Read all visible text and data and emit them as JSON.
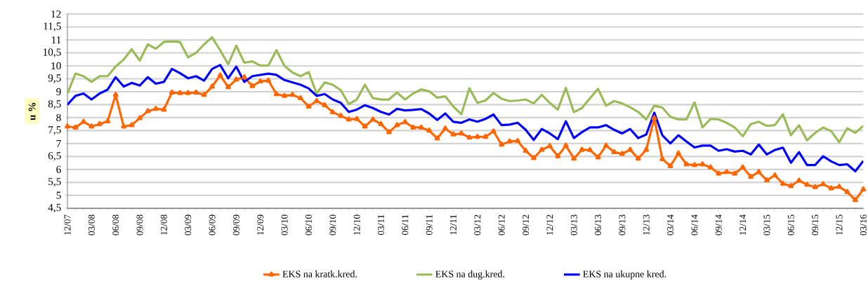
{
  "chart_data": {
    "type": "line",
    "ylabel": "u %",
    "categories": [
      "12/07",
      null,
      null,
      "03/08",
      null,
      null,
      "06/08",
      null,
      null,
      "09/08",
      null,
      null,
      "12/08",
      null,
      null,
      "03/09",
      null,
      null,
      "06/09",
      null,
      null,
      "09/09",
      null,
      null,
      "12/09",
      null,
      null,
      "03/10",
      null,
      null,
      "06/10",
      null,
      null,
      "09/10",
      null,
      null,
      "12/10",
      null,
      null,
      "03/11",
      null,
      null,
      "06/11",
      null,
      null,
      "09/11",
      null,
      null,
      "12/11",
      null,
      null,
      "03/12",
      null,
      null,
      "06/12",
      null,
      null,
      "09/12",
      null,
      null,
      "12/12",
      null,
      null,
      "03/13",
      null,
      null,
      "06/13",
      null,
      null,
      "09/13",
      null,
      null,
      "12/13",
      null,
      null,
      "03/14",
      null,
      null,
      "06/14",
      null,
      null,
      "09/14",
      null,
      null,
      "12/14",
      null,
      null,
      "03/15",
      null,
      null,
      "06/15",
      null,
      null,
      "09/15",
      null,
      null,
      "12/15",
      null,
      null,
      "03/16"
    ],
    "series": [
      {
        "name": "EKS na kratk.kred.",
        "color": "#ff6600",
        "marker": "triangle",
        "values": [
          7.66,
          7.62,
          7.84,
          7.66,
          7.75,
          7.86,
          8.88,
          7.66,
          7.71,
          7.98,
          8.25,
          8.34,
          8.31,
          8.97,
          8.95,
          8.95,
          8.97,
          8.88,
          9.2,
          9.63,
          9.18,
          9.47,
          9.56,
          9.22,
          9.4,
          9.43,
          8.91,
          8.84,
          8.88,
          8.75,
          8.43,
          8.64,
          8.48,
          8.21,
          8.07,
          7.93,
          7.95,
          7.66,
          7.93,
          7.75,
          7.44,
          7.71,
          7.83,
          7.62,
          7.62,
          7.5,
          7.2,
          7.58,
          7.35,
          7.39,
          7.23,
          7.26,
          7.26,
          7.47,
          6.96,
          7.08,
          7.1,
          6.72,
          6.44,
          6.76,
          6.9,
          6.51,
          6.92,
          6.42,
          6.76,
          6.75,
          6.47,
          6.92,
          6.67,
          6.6,
          6.76,
          6.42,
          6.76,
          7.98,
          6.4,
          6.13,
          6.62,
          6.2,
          6.17,
          6.2,
          6.08,
          5.84,
          5.9,
          5.84,
          6.08,
          5.72,
          5.9,
          5.58,
          5.77,
          5.45,
          5.36,
          5.57,
          5.41,
          5.32,
          5.43,
          5.27,
          5.33,
          5.13,
          4.82,
          5.23
        ]
      },
      {
        "name": "EKS na dug.kred.",
        "color": "#9bbb59",
        "values": [
          8.93,
          9.7,
          9.6,
          9.38,
          9.6,
          9.6,
          9.97,
          10.24,
          10.64,
          10.2,
          10.83,
          10.66,
          10.92,
          10.94,
          10.92,
          10.33,
          10.5,
          10.83,
          11.1,
          10.6,
          10.06,
          10.78,
          10.12,
          10.17,
          10.01,
          10.01,
          10.6,
          10.0,
          9.74,
          9.6,
          9.76,
          8.93,
          9.36,
          9.27,
          9.06,
          8.52,
          8.7,
          9.27,
          8.75,
          8.7,
          8.7,
          8.97,
          8.7,
          8.93,
          9.09,
          9.02,
          8.77,
          8.82,
          8.43,
          8.13,
          9.13,
          8.57,
          8.66,
          8.95,
          8.73,
          8.64,
          8.66,
          8.7,
          8.55,
          8.88,
          8.57,
          8.31,
          9.15,
          8.21,
          8.37,
          8.75,
          9.11,
          8.46,
          8.64,
          8.55,
          8.4,
          8.22,
          7.93,
          8.46,
          8.39,
          8.03,
          7.93,
          7.93,
          8.59,
          7.62,
          7.95,
          7.93,
          7.8,
          7.62,
          7.28,
          7.75,
          7.84,
          7.68,
          7.71,
          8.13,
          7.32,
          7.71,
          7.12,
          7.41,
          7.62,
          7.48,
          7.05,
          7.59,
          7.41,
          7.68
        ]
      },
      {
        "name": "EKS na ukupne kred.",
        "color": "#0000ff",
        "values": [
          8.5,
          8.84,
          8.93,
          8.7,
          8.93,
          9.08,
          9.56,
          9.2,
          9.34,
          9.24,
          9.56,
          9.31,
          9.38,
          9.88,
          9.72,
          9.52,
          9.6,
          9.43,
          9.88,
          10.03,
          9.52,
          9.97,
          9.38,
          9.6,
          9.65,
          9.7,
          9.65,
          9.45,
          9.36,
          9.27,
          9.13,
          8.84,
          8.91,
          8.7,
          8.57,
          8.22,
          8.31,
          8.48,
          8.37,
          8.22,
          8.12,
          8.34,
          8.28,
          8.3,
          8.33,
          8.16,
          7.91,
          8.16,
          7.84,
          7.8,
          7.93,
          7.84,
          7.95,
          8.12,
          7.71,
          7.73,
          7.8,
          7.53,
          7.14,
          7.56,
          7.39,
          7.17,
          7.86,
          7.21,
          7.44,
          7.62,
          7.62,
          7.71,
          7.53,
          7.39,
          7.56,
          7.21,
          7.35,
          8.19,
          7.32,
          7.01,
          7.32,
          7.08,
          6.85,
          6.92,
          6.92,
          6.72,
          6.78,
          6.69,
          6.72,
          6.58,
          6.96,
          6.58,
          6.75,
          6.84,
          6.26,
          6.67,
          6.17,
          6.17,
          6.51,
          6.31,
          6.17,
          6.2,
          5.93,
          6.33
        ]
      }
    ],
    "ylim": [
      4.5,
      12
    ],
    "yticks": [
      {
        "value": 4.5,
        "label": "4,5"
      },
      5,
      {
        "value": 5.5,
        "label": "5,5"
      },
      6,
      {
        "value": 6.5,
        "label": "6,5"
      },
      7,
      {
        "value": 7.5,
        "label": "7,5"
      },
      8,
      {
        "value": 8.5,
        "label": "8,5"
      },
      9,
      {
        "value": 9.5,
        "label": "9,5"
      },
      10,
      {
        "value": 10.5,
        "label": "10,5"
      },
      11,
      {
        "value": 11.5,
        "label": "11,5"
      },
      12
    ],
    "grid": "y",
    "legend": "bottom"
  }
}
